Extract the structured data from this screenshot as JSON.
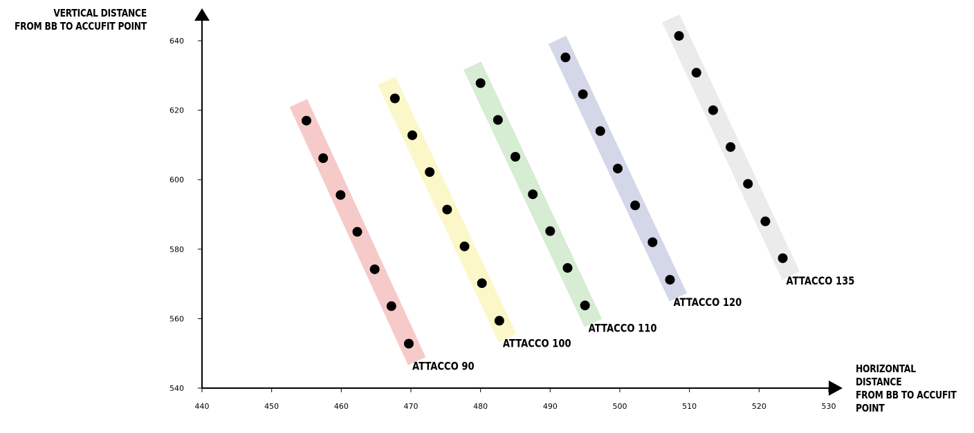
{
  "chart_data": {
    "type": "scatter",
    "xlabel": "HORIZONTAL\nDISTANCE\nFROM BB TO ACCUFIT\nPOINT",
    "ylabel": "VERTICAL DISTANCE\nFROM BB TO ACCUFIT POINT",
    "xlim": [
      440,
      530
    ],
    "ylim": [
      540,
      640
    ],
    "x_ticks": [
      440,
      450,
      460,
      470,
      480,
      490,
      500,
      510,
      520,
      530
    ],
    "y_ticks": [
      540,
      560,
      580,
      600,
      620,
      640
    ],
    "grid": false,
    "series": [
      {
        "name": "ATTACCO 90",
        "band_color": "#f7caca",
        "x": [
          455.0,
          457.4,
          459.9,
          462.3,
          464.8,
          467.2,
          469.7
        ],
        "y": [
          617.0,
          606.2,
          595.6,
          585.0,
          574.2,
          563.6,
          552.8
        ]
      },
      {
        "name": "ATTACCO 100",
        "band_color": "#fbf7c8",
        "x": [
          467.7,
          470.2,
          472.7,
          475.2,
          477.7,
          480.2,
          482.7
        ],
        "y": [
          623.4,
          612.8,
          602.2,
          591.4,
          580.8,
          570.2,
          559.4
        ]
      },
      {
        "name": "ATTACCO 110",
        "band_color": "#d6ecd3",
        "x": [
          480.0,
          482.5,
          485.0,
          487.5,
          490.0,
          492.5,
          495.0
        ],
        "y": [
          627.8,
          617.2,
          606.6,
          595.8,
          585.2,
          574.6,
          563.8
        ]
      },
      {
        "name": "ATTACCO 120",
        "band_color": "#d4d7e8",
        "x": [
          492.2,
          494.7,
          497.2,
          499.7,
          502.2,
          504.7,
          507.2
        ],
        "y": [
          635.2,
          624.6,
          614.0,
          603.2,
          592.6,
          582.0,
          571.2
        ]
      },
      {
        "name": "ATTACCO 135",
        "band_color": "#ebebeb",
        "x": [
          508.5,
          511.0,
          513.4,
          515.9,
          518.4,
          520.9,
          523.4
        ],
        "y": [
          641.4,
          630.8,
          620.0,
          609.4,
          598.8,
          588.0,
          577.4
        ]
      }
    ]
  }
}
